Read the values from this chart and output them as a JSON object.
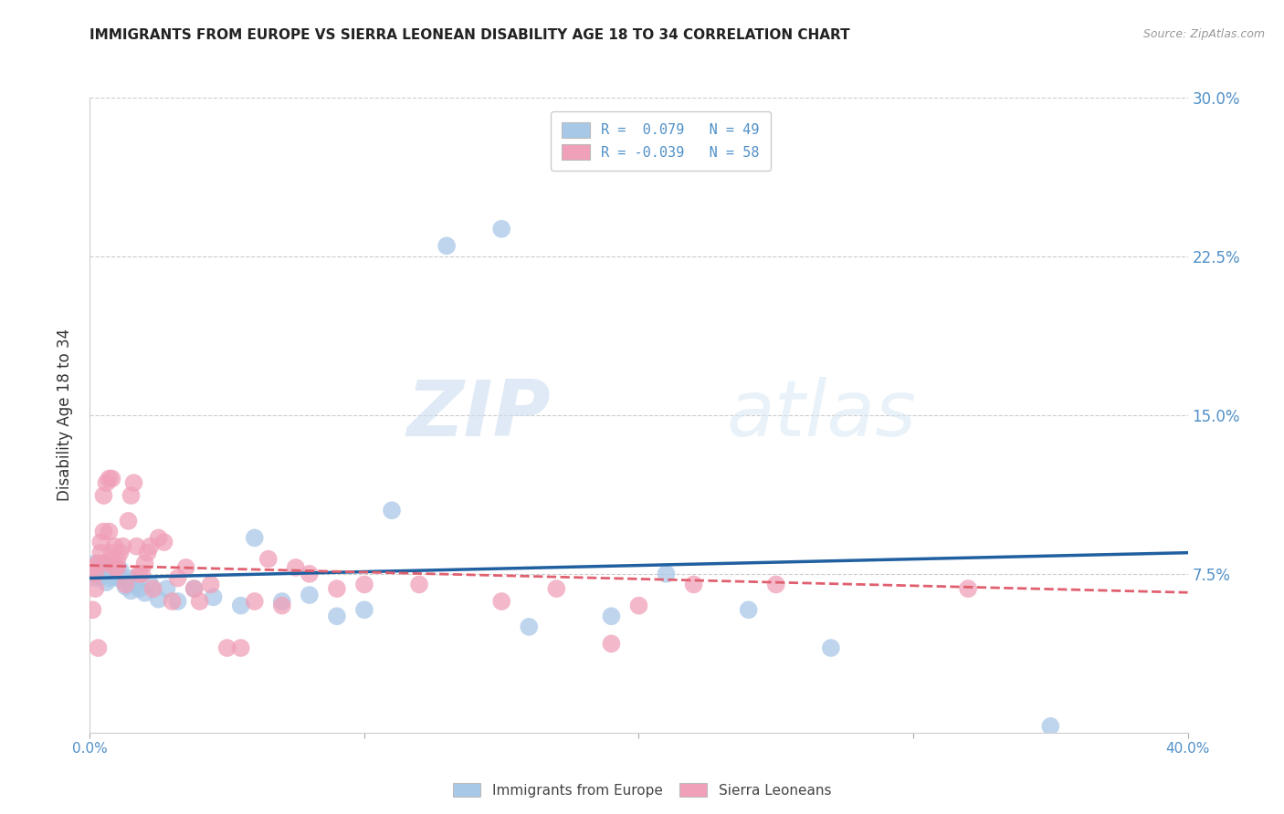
{
  "title": "IMMIGRANTS FROM EUROPE VS SIERRA LEONEAN DISABILITY AGE 18 TO 34 CORRELATION CHART",
  "source": "Source: ZipAtlas.com",
  "ylabel": "Disability Age 18 to 34",
  "xlim": [
    0.0,
    0.4
  ],
  "ylim": [
    0.0,
    0.3
  ],
  "yticks": [
    0.075,
    0.15,
    0.225,
    0.3
  ],
  "ytick_labels": [
    "7.5%",
    "15.0%",
    "22.5%",
    "30.0%"
  ],
  "xtick_labels_bottom": [
    "0.0%",
    "40.0%"
  ],
  "xtick_pos_bottom": [
    0.0,
    0.4
  ],
  "legend_labels": [
    "Immigrants from Europe",
    "Sierra Leoneans"
  ],
  "blue_R": "R =  0.079",
  "blue_N": "N = 49",
  "pink_R": "R = -0.039",
  "pink_N": "N = 58",
  "blue_color": "#a8c8e8",
  "pink_color": "#f0a0b8",
  "blue_line_color": "#2060a0",
  "pink_line_color": "#e06070",
  "watermark_zip": "ZIP",
  "watermark_atlas": "atlas",
  "blue_scatter_x": [
    0.001,
    0.002,
    0.002,
    0.003,
    0.003,
    0.004,
    0.004,
    0.005,
    0.005,
    0.006,
    0.006,
    0.007,
    0.007,
    0.008,
    0.008,
    0.009,
    0.009,
    0.01,
    0.01,
    0.011,
    0.012,
    0.013,
    0.014,
    0.015,
    0.016,
    0.017,
    0.018,
    0.02,
    0.022,
    0.025,
    0.028,
    0.032,
    0.038,
    0.045,
    0.055,
    0.06,
    0.07,
    0.08,
    0.09,
    0.1,
    0.11,
    0.13,
    0.15,
    0.16,
    0.19,
    0.21,
    0.24,
    0.27,
    0.35
  ],
  "blue_scatter_y": [
    0.075,
    0.08,
    0.073,
    0.079,
    0.076,
    0.078,
    0.074,
    0.077,
    0.08,
    0.075,
    0.071,
    0.079,
    0.073,
    0.077,
    0.075,
    0.076,
    0.074,
    0.073,
    0.078,
    0.077,
    0.072,
    0.069,
    0.073,
    0.067,
    0.07,
    0.073,
    0.068,
    0.066,
    0.07,
    0.063,
    0.068,
    0.062,
    0.068,
    0.064,
    0.06,
    0.092,
    0.062,
    0.065,
    0.055,
    0.058,
    0.105,
    0.23,
    0.238,
    0.05,
    0.055,
    0.075,
    0.058,
    0.04,
    0.003
  ],
  "pink_scatter_x": [
    0.001,
    0.001,
    0.002,
    0.002,
    0.003,
    0.003,
    0.004,
    0.004,
    0.005,
    0.005,
    0.006,
    0.006,
    0.007,
    0.007,
    0.008,
    0.008,
    0.009,
    0.009,
    0.01,
    0.01,
    0.011,
    0.012,
    0.013,
    0.014,
    0.015,
    0.016,
    0.017,
    0.018,
    0.019,
    0.02,
    0.021,
    0.022,
    0.023,
    0.025,
    0.027,
    0.03,
    0.032,
    0.035,
    0.038,
    0.04,
    0.044,
    0.05,
    0.055,
    0.06,
    0.065,
    0.07,
    0.075,
    0.08,
    0.09,
    0.1,
    0.12,
    0.15,
    0.17,
    0.2,
    0.22,
    0.25,
    0.19,
    0.32
  ],
  "pink_scatter_y": [
    0.078,
    0.058,
    0.075,
    0.068,
    0.08,
    0.04,
    0.085,
    0.09,
    0.112,
    0.095,
    0.118,
    0.08,
    0.12,
    0.095,
    0.12,
    0.085,
    0.088,
    0.078,
    0.082,
    0.078,
    0.085,
    0.088,
    0.07,
    0.1,
    0.112,
    0.118,
    0.088,
    0.075,
    0.075,
    0.08,
    0.085,
    0.088,
    0.068,
    0.092,
    0.09,
    0.062,
    0.073,
    0.078,
    0.068,
    0.062,
    0.07,
    0.04,
    0.04,
    0.062,
    0.082,
    0.06,
    0.078,
    0.075,
    0.068,
    0.07,
    0.07,
    0.062,
    0.068,
    0.06,
    0.07,
    0.07,
    0.042,
    0.068
  ]
}
